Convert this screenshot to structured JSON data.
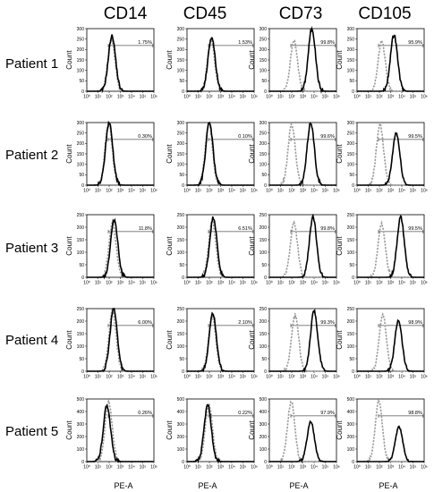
{
  "chart_data": {
    "type": "histogram-grid",
    "x_axis_label": "PE-A",
    "y_axis_label": "Count",
    "x_scale": "log",
    "x_ticks": [
      "10⁰",
      "10¹",
      "10²",
      "10³",
      "10⁴",
      "10⁵",
      "10⁶"
    ],
    "columns": [
      "CD14",
      "CD45",
      "CD73",
      "CD105"
    ],
    "rows": [
      "Patient 1",
      "Patient 2",
      "Patient 3",
      "Patient 4",
      "Patient 5"
    ],
    "series_styles": {
      "control": {
        "color": "#9a9a9a",
        "dash": "dotted"
      },
      "stained": {
        "color": "#000000",
        "dash": "solid"
      }
    },
    "panels": [
      [
        {
          "gate_label": "1.75%",
          "y_ticks": [
            0,
            50,
            100,
            150,
            200,
            250,
            300
          ],
          "ymax": 300,
          "control": {
            "peak_log": 2.2,
            "height": 250
          },
          "stained": {
            "peak_log": 2.25,
            "height": 265
          }
        },
        {
          "gate_label": "1.53%",
          "y_ticks": [
            0,
            50,
            100,
            150,
            200,
            250,
            300
          ],
          "ymax": 300,
          "control": {
            "peak_log": 2.15,
            "height": 245
          },
          "stained": {
            "peak_log": 2.2,
            "height": 260
          }
        },
        {
          "gate_label": "99.8%",
          "y_ticks": [
            0,
            50,
            100,
            150,
            200,
            250,
            300
          ],
          "ymax": 300,
          "control": {
            "peak_log": 2.2,
            "height": 240
          },
          "stained": {
            "peak_log": 3.8,
            "height": 300
          }
        },
        {
          "gate_label": "95.9%",
          "y_ticks": [
            0,
            50,
            100,
            150,
            200,
            250,
            300
          ],
          "ymax": 300,
          "control": {
            "peak_log": 2.2,
            "height": 240
          },
          "stained": {
            "peak_log": 3.3,
            "height": 270
          }
        }
      ],
      [
        {
          "gate_label": "0.30%",
          "y_ticks": [
            0,
            50,
            100,
            150,
            200,
            250,
            300
          ],
          "ymax": 300,
          "control": {
            "peak_log": 1.95,
            "height": 295
          },
          "stained": {
            "peak_log": 2.0,
            "height": 300
          }
        },
        {
          "gate_label": "0.10%",
          "y_ticks": [
            0,
            50,
            100,
            150,
            200,
            250,
            300
          ],
          "ymax": 300,
          "control": {
            "peak_log": 1.95,
            "height": 295
          },
          "stained": {
            "peak_log": 2.0,
            "height": 300
          }
        },
        {
          "gate_label": "99.6%",
          "y_ticks": [
            0,
            50,
            100,
            150,
            200,
            250,
            300
          ],
          "ymax": 300,
          "control": {
            "peak_log": 2.0,
            "height": 290
          },
          "stained": {
            "peak_log": 3.7,
            "height": 300
          }
        },
        {
          "gate_label": "99.5%",
          "y_ticks": [
            0,
            50,
            100,
            150,
            200,
            250,
            300
          ],
          "ymax": 300,
          "control": {
            "peak_log": 2.05,
            "height": 290
          },
          "stained": {
            "peak_log": 3.5,
            "height": 250
          }
        }
      ],
      [
        {
          "gate_label": "11.8%",
          "y_ticks": [
            0,
            50,
            100,
            150,
            200,
            250
          ],
          "ymax": 250,
          "control": {
            "peak_log": 2.3,
            "height": 215
          },
          "stained": {
            "peak_log": 2.45,
            "height": 230
          }
        },
        {
          "gate_label": "6.51%",
          "y_ticks": [
            0,
            50,
            100,
            150,
            200,
            250
          ],
          "ymax": 250,
          "control": {
            "peak_log": 2.25,
            "height": 225
          },
          "stained": {
            "peak_log": 2.35,
            "height": 240
          }
        },
        {
          "gate_label": "99.8%",
          "y_ticks": [
            0,
            50,
            100,
            150,
            200,
            250
          ],
          "ymax": 250,
          "control": {
            "peak_log": 2.2,
            "height": 215
          },
          "stained": {
            "peak_log": 3.9,
            "height": 240
          }
        },
        {
          "gate_label": "99.5%",
          "y_ticks": [
            0,
            50,
            100,
            150,
            200,
            250
          ],
          "ymax": 250,
          "control": {
            "peak_log": 2.2,
            "height": 215
          },
          "stained": {
            "peak_log": 3.9,
            "height": 240
          }
        }
      ],
      [
        {
          "gate_label": "6.00%",
          "y_ticks": [
            0,
            50,
            100,
            150,
            200,
            250
          ],
          "ymax": 250,
          "control": {
            "peak_log": 2.3,
            "height": 240
          },
          "stained": {
            "peak_log": 2.4,
            "height": 250
          }
        },
        {
          "gate_label": "2.10%",
          "y_ticks": [
            0,
            50,
            100,
            150,
            200,
            250
          ],
          "ymax": 250,
          "control": {
            "peak_log": 2.25,
            "height": 220
          },
          "stained": {
            "peak_log": 2.3,
            "height": 230
          }
        },
        {
          "gate_label": "99.3%",
          "y_ticks": [
            0,
            50,
            100,
            150,
            200,
            250
          ],
          "ymax": 250,
          "control": {
            "peak_log": 2.3,
            "height": 225
          },
          "stained": {
            "peak_log": 4.0,
            "height": 240
          }
        },
        {
          "gate_label": "98.9%",
          "y_ticks": [
            0,
            50,
            100,
            150,
            200,
            250
          ],
          "ymax": 250,
          "control": {
            "peak_log": 2.3,
            "height": 225
          },
          "stained": {
            "peak_log": 3.7,
            "height": 205
          }
        }
      ],
      [
        {
          "gate_label": "0.26%",
          "y_ticks": [
            0,
            100,
            200,
            300,
            400,
            500
          ],
          "ymax": 500,
          "control": {
            "peak_log": 1.95,
            "height": 470
          },
          "stained": {
            "peak_log": 1.8,
            "height": 450
          }
        },
        {
          "gate_label": "0.22%",
          "y_ticks": [
            0,
            100,
            200,
            300,
            400,
            500
          ],
          "ymax": 500,
          "control": {
            "peak_log": 1.95,
            "height": 460
          },
          "stained": {
            "peak_log": 1.85,
            "height": 450
          }
        },
        {
          "gate_label": "97.9%",
          "y_ticks": [
            0,
            100,
            200,
            300,
            400,
            500
          ],
          "ymax": 500,
          "control": {
            "peak_log": 1.95,
            "height": 480
          },
          "stained": {
            "peak_log": 3.7,
            "height": 320
          }
        },
        {
          "gate_label": "98.8%",
          "y_ticks": [
            0,
            100,
            200,
            300,
            400,
            500
          ],
          "ymax": 500,
          "control": {
            "peak_log": 1.95,
            "height": 480
          },
          "stained": {
            "peak_log": 3.75,
            "height": 280
          }
        }
      ]
    ]
  }
}
